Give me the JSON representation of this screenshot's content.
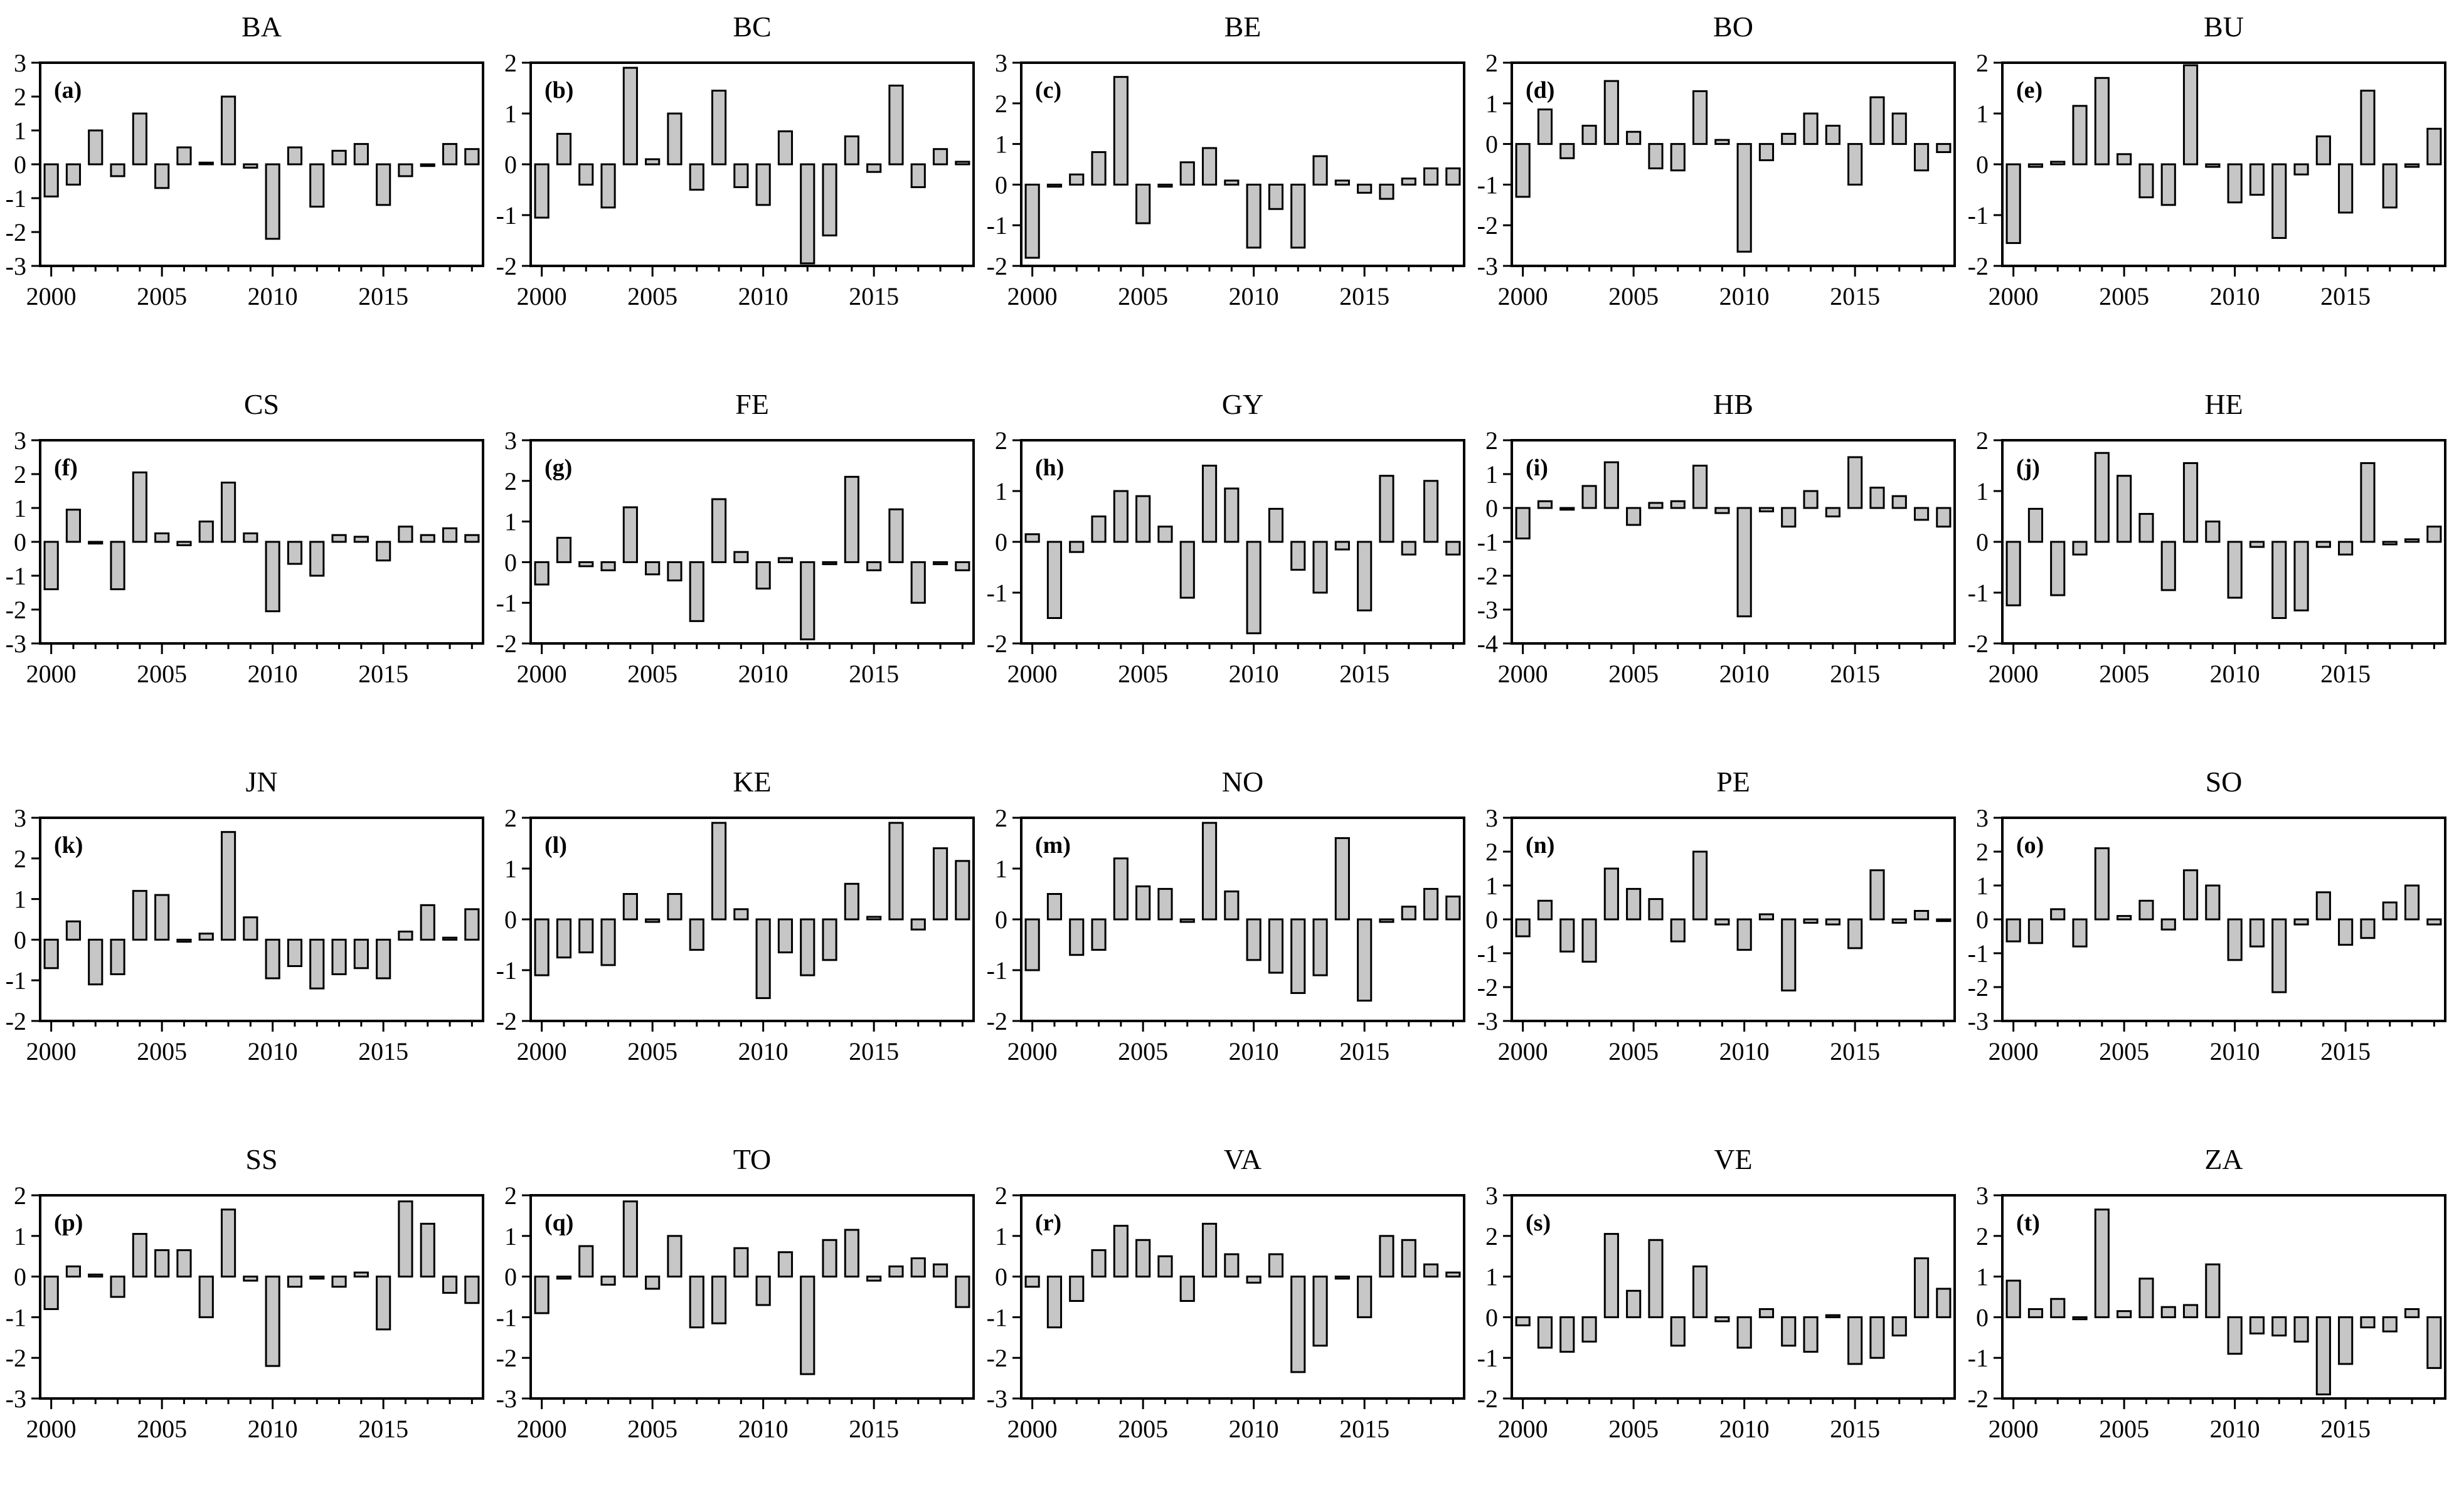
{
  "page": {
    "background": "#ffffff",
    "text_color": "#000000"
  },
  "chart_data": {
    "type": "bar",
    "x": [
      2000,
      2001,
      2002,
      2003,
      2004,
      2005,
      2006,
      2007,
      2008,
      2009,
      2010,
      2011,
      2012,
      2013,
      2014,
      2015,
      2016,
      2017,
      2018,
      2019
    ],
    "x_major_ticks": [
      2000,
      2005,
      2010,
      2015
    ],
    "grid": "off",
    "legend": "none",
    "bar_fill": "#c6c6c6",
    "bar_stroke": "#000000",
    "panels": [
      {
        "title": "BA",
        "label": "(a)",
        "ylim": [
          -3,
          3
        ],
        "values": [
          -0.95,
          -0.6,
          1.0,
          -0.35,
          1.5,
          -0.7,
          0.5,
          0.05,
          2.0,
          -0.1,
          -2.2,
          0.5,
          -1.25,
          0.4,
          0.6,
          -1.2,
          -0.35,
          -0.05,
          0.6,
          0.45
        ]
      },
      {
        "title": "BC",
        "label": "(b)",
        "ylim": [
          -2,
          2
        ],
        "values": [
          -1.05,
          0.6,
          -0.4,
          -0.85,
          1.9,
          0.1,
          1.0,
          -0.5,
          1.45,
          -0.45,
          -0.8,
          0.65,
          -1.95,
          -1.4,
          0.55,
          -0.15,
          1.55,
          -0.45,
          0.3,
          0.05
        ]
      },
      {
        "title": "BE",
        "label": "(c)",
        "ylim": [
          -2,
          3
        ],
        "values": [
          -1.8,
          -0.05,
          0.25,
          0.8,
          2.65,
          -0.95,
          -0.05,
          0.55,
          0.9,
          0.1,
          -1.55,
          -0.6,
          -1.55,
          0.7,
          0.1,
          -0.2,
          -0.35,
          0.15,
          0.4,
          0.4
        ]
      },
      {
        "title": "BO",
        "label": "(d)",
        "ylim": [
          -3,
          2
        ],
        "values": [
          -1.3,
          0.85,
          -0.35,
          0.45,
          1.55,
          0.3,
          -0.6,
          -0.65,
          1.3,
          0.1,
          -2.65,
          -0.4,
          0.25,
          0.75,
          0.45,
          -1.0,
          1.15,
          0.75,
          -0.65,
          -0.2
        ]
      },
      {
        "title": "BU",
        "label": "(e)",
        "ylim": [
          -2,
          2
        ],
        "values": [
          -1.55,
          -0.05,
          0.05,
          1.15,
          1.7,
          0.2,
          -0.65,
          -0.8,
          1.95,
          -0.05,
          -0.75,
          -0.6,
          -1.45,
          -0.2,
          0.55,
          -0.95,
          1.45,
          -0.85,
          -0.05,
          0.7
        ]
      },
      {
        "title": "CS",
        "label": "(f)",
        "ylim": [
          -3,
          3
        ],
        "values": [
          -1.4,
          0.95,
          -0.05,
          -1.4,
          2.05,
          0.25,
          -0.1,
          0.6,
          1.75,
          0.25,
          -2.05,
          -0.65,
          -1.0,
          0.2,
          0.15,
          -0.55,
          0.45,
          0.2,
          0.4,
          0.2
        ]
      },
      {
        "title": "FE",
        "label": "(g)",
        "ylim": [
          -2,
          3
        ],
        "values": [
          -0.55,
          0.6,
          -0.1,
          -0.2,
          1.35,
          -0.3,
          -0.45,
          -1.45,
          1.55,
          0.25,
          -0.65,
          0.1,
          -1.9,
          -0.05,
          2.1,
          -0.2,
          1.3,
          -1.0,
          -0.05,
          -0.2
        ]
      },
      {
        "title": "GY",
        "label": "(h)",
        "ylim": [
          -2,
          2
        ],
        "values": [
          0.15,
          -1.5,
          -0.2,
          0.5,
          1.0,
          0.9,
          0.3,
          -1.1,
          1.5,
          1.05,
          -1.8,
          0.65,
          -0.55,
          -1.0,
          -0.15,
          -1.35,
          1.3,
          -0.25,
          1.2,
          -0.25
        ]
      },
      {
        "title": "HB",
        "label": "(i)",
        "ylim": [
          -4,
          2
        ],
        "values": [
          -0.9,
          0.2,
          -0.05,
          0.65,
          1.35,
          -0.5,
          0.15,
          0.2,
          1.25,
          -0.15,
          -3.2,
          -0.1,
          -0.55,
          0.5,
          -0.25,
          1.5,
          0.6,
          0.35,
          -0.35,
          -0.55
        ]
      },
      {
        "title": "HE",
        "label": "(j)",
        "ylim": [
          -2,
          2
        ],
        "values": [
          -1.25,
          0.65,
          -1.05,
          -0.25,
          1.75,
          1.3,
          0.55,
          -0.95,
          1.55,
          0.4,
          -1.1,
          -0.1,
          -1.5,
          -1.35,
          -0.1,
          -0.25,
          1.55,
          -0.05,
          0.05,
          0.3
        ]
      },
      {
        "title": "JN",
        "label": "(k)",
        "ylim": [
          -2,
          3
        ],
        "values": [
          -0.7,
          0.45,
          -1.1,
          -0.85,
          1.2,
          1.1,
          -0.05,
          0.15,
          2.65,
          0.55,
          -0.95,
          -0.65,
          -1.2,
          -0.85,
          -0.7,
          -0.95,
          0.2,
          0.85,
          0.05,
          0.75
        ]
      },
      {
        "title": "KE",
        "label": "(l)",
        "ylim": [
          -2,
          2
        ],
        "values": [
          -1.1,
          -0.75,
          -0.65,
          -0.9,
          0.5,
          -0.05,
          0.5,
          -0.6,
          1.9,
          0.2,
          -1.55,
          -0.65,
          -1.1,
          -0.8,
          0.7,
          0.05,
          1.9,
          -0.2,
          1.4,
          1.15
        ]
      },
      {
        "title": "NO",
        "label": "(m)",
        "ylim": [
          -2,
          2
        ],
        "values": [
          -1.0,
          0.5,
          -0.7,
          -0.6,
          1.2,
          0.65,
          0.6,
          -0.05,
          1.9,
          0.55,
          -0.8,
          -1.05,
          -1.45,
          -1.1,
          1.6,
          -1.6,
          -0.05,
          0.25,
          0.6,
          0.45
        ]
      },
      {
        "title": "PE",
        "label": "(n)",
        "ylim": [
          -3,
          3
        ],
        "values": [
          -0.5,
          0.55,
          -0.95,
          -1.25,
          1.5,
          0.9,
          0.6,
          -0.65,
          2.0,
          -0.15,
          -0.9,
          0.15,
          -2.1,
          -0.1,
          -0.15,
          -0.85,
          1.45,
          -0.1,
          0.25,
          -0.05
        ]
      },
      {
        "title": "SO",
        "label": "(o)",
        "ylim": [
          -3,
          3
        ],
        "values": [
          -0.65,
          -0.7,
          0.3,
          -0.8,
          2.1,
          0.1,
          0.55,
          -0.3,
          1.45,
          1.0,
          -1.2,
          -0.8,
          -2.15,
          -0.15,
          0.8,
          -0.75,
          -0.55,
          0.5,
          1.0,
          -0.15
        ]
      },
      {
        "title": "SS",
        "label": "(p)",
        "ylim": [
          -3,
          2
        ],
        "values": [
          -0.8,
          0.25,
          0.05,
          -0.5,
          1.05,
          0.65,
          0.65,
          -1.0,
          1.65,
          -0.1,
          -2.2,
          -0.25,
          -0.05,
          -0.25,
          0.1,
          -1.3,
          1.85,
          1.3,
          -0.4,
          -0.65
        ]
      },
      {
        "title": "TO",
        "label": "(q)",
        "ylim": [
          -3,
          2
        ],
        "values": [
          -0.9,
          -0.05,
          0.75,
          -0.2,
          1.85,
          -0.3,
          1.0,
          -1.25,
          -1.15,
          0.7,
          -0.7,
          0.6,
          -2.4,
          0.9,
          1.15,
          -0.1,
          0.25,
          0.45,
          0.3,
          -0.75
        ]
      },
      {
        "title": "VA",
        "label": "(r)",
        "ylim": [
          -3,
          2
        ],
        "values": [
          -0.25,
          -1.25,
          -0.6,
          0.65,
          1.25,
          0.9,
          0.5,
          -0.6,
          1.3,
          0.55,
          -0.15,
          0.55,
          -2.35,
          -1.7,
          -0.05,
          -1.0,
          1.0,
          0.9,
          0.3,
          0.1
        ]
      },
      {
        "title": "VE",
        "label": "(s)",
        "ylim": [
          -2,
          3
        ],
        "values": [
          -0.2,
          -0.75,
          -0.85,
          -0.6,
          2.05,
          0.65,
          1.9,
          -0.7,
          1.25,
          -0.1,
          -0.75,
          0.2,
          -0.7,
          -0.85,
          0.05,
          -1.15,
          -1.0,
          -0.45,
          1.45,
          0.7
        ]
      },
      {
        "title": "ZA",
        "label": "(t)",
        "ylim": [
          -2,
          3
        ],
        "values": [
          0.9,
          0.2,
          0.45,
          -0.05,
          2.65,
          0.15,
          0.95,
          0.25,
          0.3,
          1.3,
          -0.9,
          -0.4,
          -0.45,
          -0.6,
          -1.9,
          -1.15,
          -0.25,
          -0.35,
          0.2,
          -1.25
        ]
      }
    ]
  }
}
